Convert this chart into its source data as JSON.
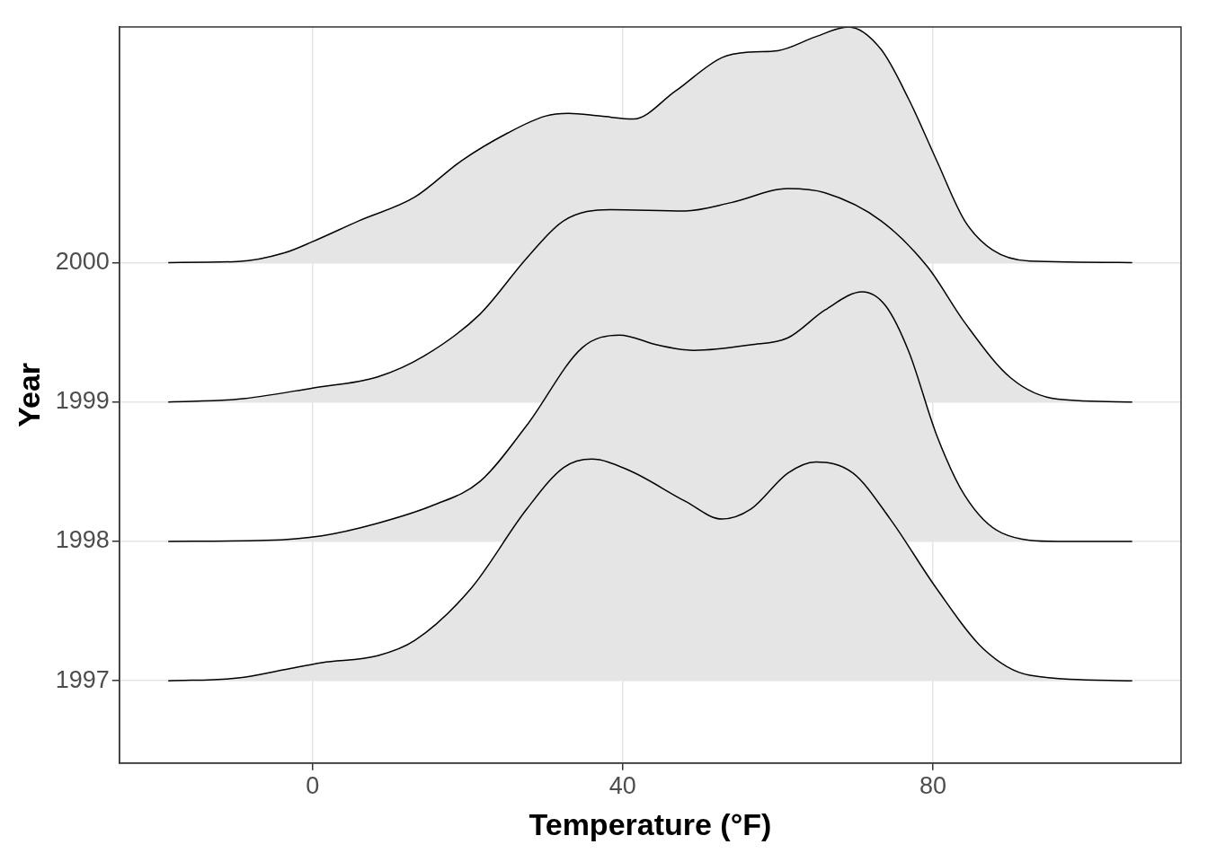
{
  "chart_data": {
    "type": "area",
    "xlabel": "Temperature (°F)",
    "ylabel": "Year",
    "xlim": [
      -24.9,
      112
    ],
    "xticks": [
      0,
      40,
      80
    ],
    "ylim": [
      1996.41,
      2001.69
    ],
    "yticks": [
      1997,
      1998,
      1999,
      2000
    ],
    "grid": true,
    "legend": false,
    "marker": "none",
    "series": [
      {
        "color": "#e5e5e5",
        "x": [
          -18.6,
          -9.6,
          -3.6,
          1.2,
          8.4,
          13.2,
          20.4,
          27.6,
          32.4,
          36,
          40.8,
          48,
          52.8,
          56.5,
          61.3,
          64.9,
          69.7,
          74.5,
          80.5,
          86.5,
          92.5,
          105.7
        ],
        "values": [
          1997,
          1997.02,
          1997.08,
          1997.13,
          1997.18,
          1997.29,
          1997.66,
          1998.23,
          1998.53,
          1998.59,
          1998.51,
          1998.29,
          1998.16,
          1998.23,
          1998.49,
          1998.57,
          1998.49,
          1998.16,
          1997.66,
          1997.23,
          1997.04,
          1997
        ]
      },
      {
        "color": "#e5e5e5",
        "x": [
          -18.6,
          -6,
          1.2,
          8.4,
          15.6,
          21.6,
          27.6,
          34.8,
          39.6,
          44.4,
          49.2,
          56.5,
          61.3,
          66.1,
          70.9,
          73.9,
          76.9,
          80.5,
          84.1,
          88.9,
          96.1,
          105.7
        ],
        "values": [
          1998,
          1998.007,
          1998.04,
          1998.13,
          1998.26,
          1998.43,
          1998.83,
          1999.39,
          1999.48,
          1999.41,
          1999.37,
          1999.41,
          1999.46,
          1999.66,
          1999.79,
          1999.69,
          1999.36,
          1998.76,
          1998.33,
          1998.06,
          1998,
          1998
        ]
      },
      {
        "color": "#e5e5e5",
        "x": [
          -18.6,
          -9.6,
          0,
          8.4,
          14.4,
          21.6,
          27.6,
          32.4,
          38.4,
          48,
          54,
          61.3,
          66.1,
          73.3,
          79.3,
          84.1,
          90.1,
          96.1,
          105.7
        ],
        "values": [
          1999,
          1999.02,
          1999.1,
          1999.18,
          1999.33,
          1999.63,
          2000.03,
          2000.3,
          2000.38,
          2000.37,
          2000.43,
          2000.53,
          2000.5,
          2000.3,
          1999.97,
          1999.57,
          1999.17,
          1999.02,
          1999
        ]
      },
      {
        "color": "#e5e5e5",
        "x": [
          -18.6,
          -9.6,
          -3.6,
          0,
          6,
          13.2,
          19.2,
          25.2,
          30,
          33,
          37.2,
          41.4,
          46.8,
          52.8,
          56.5,
          60,
          64.9,
          69.1,
          73.3,
          76.9,
          80.5,
          84.1,
          87.7,
          92.5,
          105.7
        ],
        "values": [
          2000,
          2000.007,
          2000.07,
          2000.15,
          2000.3,
          2000.47,
          2000.73,
          2000.93,
          2001.05,
          2001.07,
          2001.05,
          2001.03,
          2001.23,
          2001.47,
          2001.51,
          2001.52,
          2001.62,
          2001.69,
          2001.53,
          2001.17,
          2000.73,
          2000.3,
          2000.09,
          2000.01,
          2000
        ]
      }
    ]
  }
}
